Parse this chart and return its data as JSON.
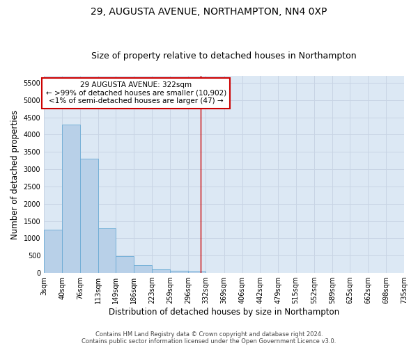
{
  "title": "29, AUGUSTA AVENUE, NORTHAMPTON, NN4 0XP",
  "subtitle": "Size of property relative to detached houses in Northampton",
  "xlabel": "Distribution of detached houses by size in Northampton",
  "ylabel": "Number of detached properties",
  "footer_line1": "Contains HM Land Registry data © Crown copyright and database right 2024.",
  "footer_line2": "Contains public sector information licensed under the Open Government Licence v3.0.",
  "annotation_title": "29 AUGUSTA AVENUE: 322sqm",
  "annotation_line1": "← >99% of detached houses are smaller (10,902)",
  "annotation_line2": "<1% of semi-detached houses are larger (47) →",
  "bar_left_edges": [
    3,
    40,
    76,
    113,
    149,
    186,
    223,
    259,
    296,
    332,
    369,
    406,
    442,
    479,
    515,
    552,
    589,
    625,
    662,
    698
  ],
  "bar_widths": [
    37,
    36,
    37,
    36,
    37,
    37,
    36,
    37,
    36,
    37,
    37,
    36,
    37,
    36,
    37,
    37,
    36,
    37,
    36,
    37
  ],
  "bar_heights": [
    1260,
    4300,
    3300,
    1290,
    490,
    220,
    105,
    60,
    40,
    0,
    0,
    0,
    0,
    0,
    0,
    0,
    0,
    0,
    0,
    0
  ],
  "bar_color": "#b8d0e8",
  "bar_edge_color": "#6aaad4",
  "grid_color": "#c8d4e4",
  "bg_color": "#dce8f4",
  "vline_x": 322,
  "vline_color": "#cc0000",
  "ylim": [
    0,
    5700
  ],
  "yticks": [
    0,
    500,
    1000,
    1500,
    2000,
    2500,
    3000,
    3500,
    4000,
    4500,
    5000,
    5500
  ],
  "xtick_labels": [
    "3sqm",
    "40sqm",
    "76sqm",
    "113sqm",
    "149sqm",
    "186sqm",
    "223sqm",
    "259sqm",
    "296sqm",
    "332sqm",
    "369sqm",
    "406sqm",
    "442sqm",
    "479sqm",
    "515sqm",
    "552sqm",
    "589sqm",
    "625sqm",
    "662sqm",
    "698sqm",
    "735sqm"
  ],
  "xtick_positions": [
    3,
    40,
    76,
    113,
    149,
    186,
    223,
    259,
    296,
    332,
    369,
    406,
    442,
    479,
    515,
    552,
    589,
    625,
    662,
    698,
    735
  ],
  "annotation_box_color": "#cc0000",
  "annotation_fill": "#ffffff",
  "title_fontsize": 10,
  "subtitle_fontsize": 9,
  "xlabel_fontsize": 8.5,
  "ylabel_fontsize": 8.5,
  "tick_fontsize": 7,
  "annotation_fontsize": 7.5,
  "footer_fontsize": 6
}
